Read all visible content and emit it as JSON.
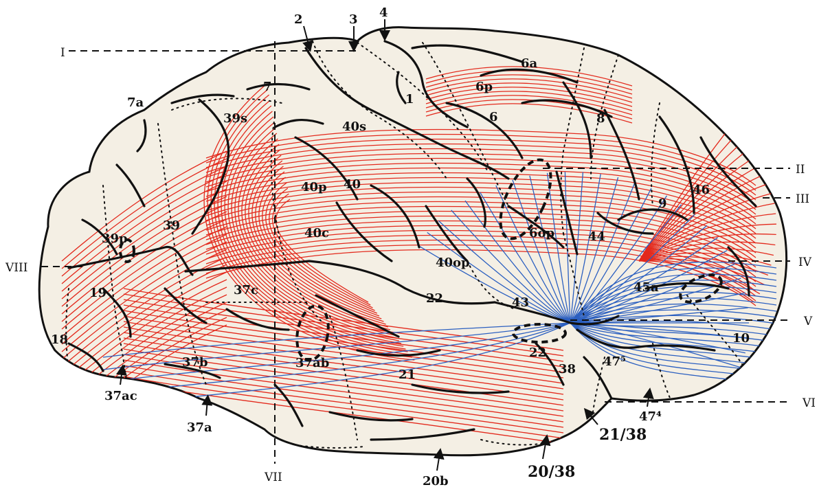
{
  "colors": {
    "brain_fill": "#f4efe4",
    "outline": "#111111",
    "association_fibers": "#e3291c",
    "ventral_fibers": "#2b5fc0",
    "boundary_dots": "#111111"
  },
  "roman_labels": [
    "I",
    "II",
    "III",
    "IV",
    "V",
    "VI",
    "VII",
    "VIII"
  ],
  "arrow_labels": [
    "2",
    "3",
    "4",
    "37ac",
    "37a",
    "20b",
    "21/38",
    "20/38",
    "47⁴"
  ],
  "area_labels": [
    "1",
    "6",
    "6a",
    "6p",
    "7",
    "7a",
    "8",
    "9",
    "10",
    "18",
    "19",
    "21",
    "22",
    "22",
    "37ab",
    "37b",
    "37c",
    "38",
    "39",
    "39p",
    "39s",
    "40",
    "40c",
    "40op",
    "40p",
    "40s",
    "43",
    "44",
    "45a",
    "46",
    "47⁵",
    "6op"
  ]
}
